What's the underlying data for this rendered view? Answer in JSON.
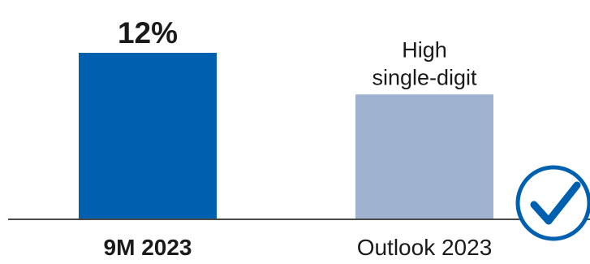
{
  "chart_data": {
    "type": "bar",
    "categories": [
      "9M 2023",
      "Outlook 2023"
    ],
    "values": [
      12,
      9
    ],
    "data_labels": [
      {
        "lines": [
          "12%"
        ],
        "bold": true
      },
      {
        "lines": [
          "High",
          "single-digit"
        ],
        "bold": false
      }
    ],
    "category_label_bold": [
      true,
      false
    ],
    "bar_colors": [
      "#0060B0",
      "#9FB3D1"
    ],
    "ylim": [
      0,
      12
    ],
    "grid": false,
    "axis_color": "#4a4a4a",
    "check_badge_color": "#0060B0"
  }
}
